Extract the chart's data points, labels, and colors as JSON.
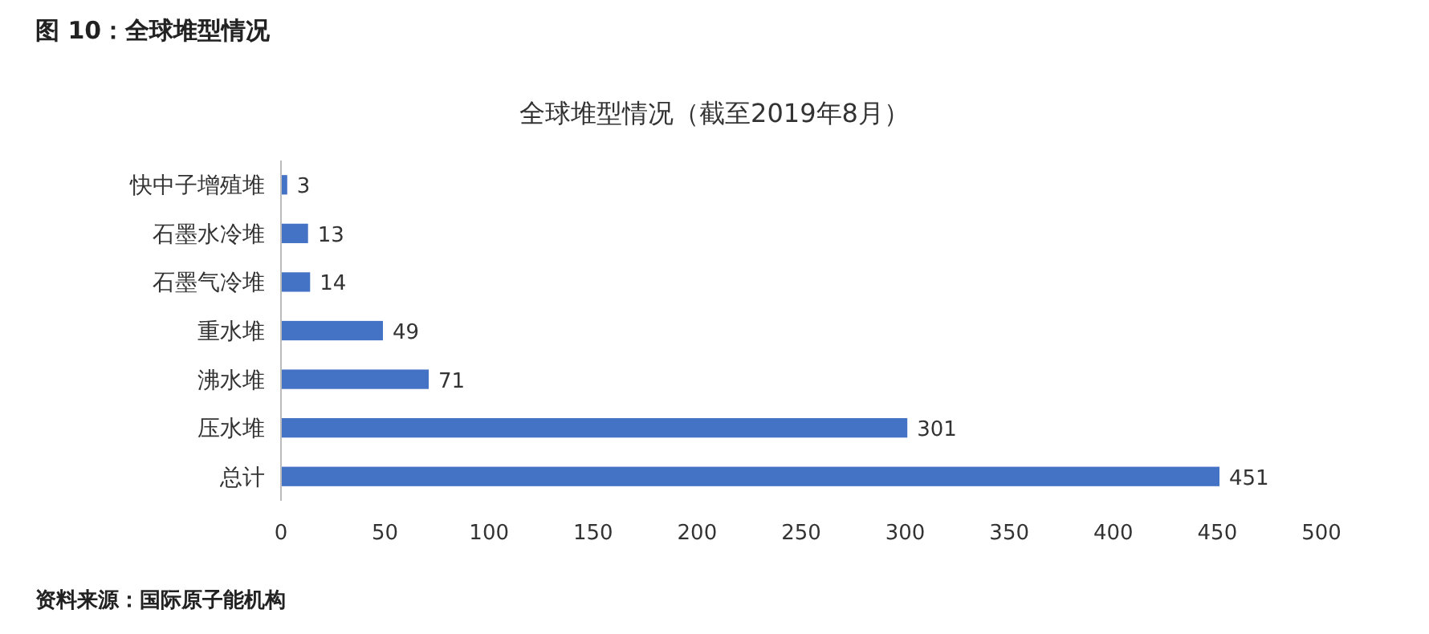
{
  "chart_data": {
    "type": "bar",
    "orientation": "horizontal",
    "title": "图 10：全球堆型情况",
    "subtitle": "全球堆型情况（截至2019年8月）",
    "categories": [
      "快中子增殖堆",
      "石墨水冷堆",
      "石墨气冷堆",
      "重水堆",
      "沸水堆",
      "压水堆",
      "总计"
    ],
    "values": [
      3,
      13,
      14,
      49,
      71,
      301,
      451
    ],
    "color": "#4472c4",
    "xlim": [
      0,
      500
    ],
    "xticks": [
      0,
      50,
      100,
      150,
      200,
      250,
      300,
      350,
      400,
      450,
      500
    ],
    "data_labels": true,
    "annotations": [
      "资料来源：国际原子能机构"
    ]
  }
}
